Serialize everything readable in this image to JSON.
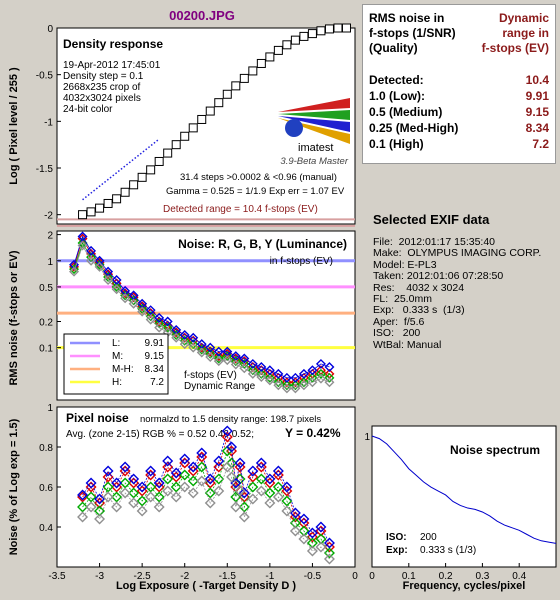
{
  "file_title": "00200.JPG",
  "colors": {
    "background": "#d4d0c8",
    "title": "#800080",
    "value_red": "#8b1a1a"
  },
  "rms_table": {
    "header_left": "RMS noise in\nf-stops (1/SNR)\n(Quality)",
    "header_right": "Dynamic\nrange in\nf-stops (EV)",
    "rows": [
      {
        "label": "Detected:",
        "value": "10.4"
      },
      {
        "label": "1.0   (Low):",
        "value": "9.91"
      },
      {
        "label": "0.5   (Medium)",
        "value": "9.15"
      },
      {
        "label": "0.25 (Med-High)",
        "value": "8.34"
      },
      {
        "label": "0.1   (High)",
        "value": "7.2"
      }
    ]
  },
  "exif": {
    "title": "Selected EXIF data",
    "lines": [
      "File:  2012:01:17 15:35:40",
      "Make:  OLYMPUS IMAGING CORP.",
      "Model: E-PL3",
      "Taken: 2012:01:06 07:28:50",
      "Res:    4032 x 3024",
      "FL:  25.0mm",
      "Exp:   0.333 s  (1/3)",
      "Aper:  f/5.6",
      "ISO:   200",
      "WtBal: Manual"
    ]
  },
  "chart_data": [
    {
      "type": "scatter",
      "title": "Density response",
      "info_lines": [
        "19-Apr-2012 17:45:01",
        "Density step = 0.1",
        "2668x235 crop of",
        "4032x3024 pixels",
        "24-bit color"
      ],
      "logo_text": "imatest",
      "version_text": "3.9-Beta  Master",
      "steps_text": "31.4 steps >0.0002 & <0.96 (manual)",
      "gamma_text": "Gamma = 0.525 = 1/1.9  Exp err = 1.07 EV",
      "detected_text": "Detected range = 10.4 f-stops (EV)",
      "ylabel": "Log ( Pixel level / 255 )",
      "xlim": [
        -3.5,
        0
      ],
      "ylim": [
        -2.1,
        0
      ],
      "yticks": [
        0,
        -0.5,
        -1,
        -1.5,
        -2
      ],
      "series": [
        {
          "marker": "square",
          "x": [
            -3.2,
            -3.1,
            -3.0,
            -2.9,
            -2.8,
            -2.7,
            -2.6,
            -2.5,
            -2.4,
            -2.3,
            -2.2,
            -2.1,
            -2.0,
            -1.9,
            -1.8,
            -1.7,
            -1.6,
            -1.5,
            -1.4,
            -1.3,
            -1.2,
            -1.1,
            -1.0,
            -0.9,
            -0.8,
            -0.7,
            -0.6,
            -0.5,
            -0.4,
            -0.3,
            -0.2,
            -0.1
          ],
          "y": [
            -2.0,
            -1.97,
            -1.93,
            -1.88,
            -1.83,
            -1.76,
            -1.68,
            -1.6,
            -1.52,
            -1.43,
            -1.34,
            -1.25,
            -1.16,
            -1.07,
            -0.98,
            -0.89,
            -0.8,
            -0.71,
            -0.62,
            -0.54,
            -0.46,
            -0.38,
            -0.31,
            -0.24,
            -0.18,
            -0.13,
            -0.09,
            -0.06,
            -0.03,
            -0.01,
            0.0,
            0.0
          ]
        },
        {
          "marker": "dotted-line",
          "x": [
            -3.2,
            -2.3
          ],
          "y": [
            -1.84,
            -1.19
          ]
        }
      ]
    },
    {
      "type": "scatter",
      "title": "Noise: R, G, B, Y (Luminance)",
      "subtitle": "in f-stops (EV)",
      "ylabel": "RMS noise (f-stops or EV)",
      "yscale": "log",
      "xlim": [
        -3.5,
        0
      ],
      "ylim": [
        0.025,
        2.2
      ],
      "yticks": [
        2,
        1,
        0.5,
        0.2,
        0.1
      ],
      "levels": [
        {
          "label": "L:",
          "value": "9.91",
          "y": 1.0,
          "color": "#9090ff"
        },
        {
          "label": "M:",
          "value": "9.15",
          "y": 0.5,
          "color": "#ff90ff"
        },
        {
          "label": "M-H:",
          "value": "8.34",
          "y": 0.25,
          "color": "#ffb080"
        },
        {
          "label": "H:",
          "value": "7.2",
          "y": 0.1,
          "color": "#ffff40"
        }
      ],
      "legend_note": "f-stops (EV)\nDynamic Range",
      "series": [
        {
          "name": "R",
          "color": "#dd0000",
          "x": [
            -3.3,
            -3.2,
            -3.1,
            -3.0,
            -2.9,
            -2.8,
            -2.7,
            -2.6,
            -2.5,
            -2.4,
            -2.3,
            -2.2,
            -2.1,
            -2.0,
            -1.9,
            -1.8,
            -1.7,
            -1.6,
            -1.5,
            -1.4,
            -1.3,
            -1.2,
            -1.1,
            -1.0,
            -0.9,
            -0.8,
            -0.7,
            -0.6,
            -0.5,
            -0.4,
            -0.3
          ],
          "y": [
            0.85,
            1.8,
            1.2,
            0.95,
            0.7,
            0.55,
            0.42,
            0.38,
            0.3,
            0.25,
            0.2,
            0.18,
            0.15,
            0.13,
            0.12,
            0.1,
            0.09,
            0.08,
            0.085,
            0.075,
            0.07,
            0.06,
            0.055,
            0.05,
            0.045,
            0.04,
            0.04,
            0.045,
            0.05,
            0.055,
            0.05
          ]
        },
        {
          "name": "G",
          "color": "#00aa00",
          "x": [
            -3.3,
            -3.2,
            -3.1,
            -3.0,
            -2.9,
            -2.8,
            -2.7,
            -2.6,
            -2.5,
            -2.4,
            -2.3,
            -2.2,
            -2.1,
            -2.0,
            -1.9,
            -1.8,
            -1.7,
            -1.6,
            -1.5,
            -1.4,
            -1.3,
            -1.2,
            -1.1,
            -1.0,
            -0.9,
            -0.8,
            -0.7,
            -0.6,
            -0.5,
            -0.4,
            -0.3
          ],
          "y": [
            0.8,
            1.6,
            1.1,
            0.9,
            0.65,
            0.5,
            0.4,
            0.35,
            0.28,
            0.23,
            0.19,
            0.17,
            0.14,
            0.12,
            0.11,
            0.095,
            0.085,
            0.075,
            0.08,
            0.07,
            0.065,
            0.055,
            0.05,
            0.045,
            0.04,
            0.037,
            0.037,
            0.04,
            0.045,
            0.05,
            0.045
          ]
        },
        {
          "name": "B",
          "color": "#0000dd",
          "x": [
            -3.3,
            -3.2,
            -3.1,
            -3.0,
            -2.9,
            -2.8,
            -2.7,
            -2.6,
            -2.5,
            -2.4,
            -2.3,
            -2.2,
            -2.1,
            -2.0,
            -1.9,
            -1.8,
            -1.7,
            -1.6,
            -1.5,
            -1.4,
            -1.3,
            -1.2,
            -1.1,
            -1.0,
            -0.9,
            -0.8,
            -0.7,
            -0.6,
            -0.5,
            -0.4,
            -0.3
          ],
          "y": [
            0.9,
            1.9,
            1.3,
            1.0,
            0.75,
            0.6,
            0.45,
            0.4,
            0.32,
            0.27,
            0.22,
            0.2,
            0.16,
            0.14,
            0.13,
            0.11,
            0.1,
            0.09,
            0.09,
            0.08,
            0.075,
            0.065,
            0.06,
            0.055,
            0.05,
            0.045,
            0.045,
            0.05,
            0.055,
            0.065,
            0.06
          ]
        },
        {
          "name": "Y",
          "color": "#909090",
          "x": [
            -3.3,
            -3.2,
            -3.1,
            -3.0,
            -2.9,
            -2.8,
            -2.7,
            -2.6,
            -2.5,
            -2.4,
            -2.3,
            -2.2,
            -2.1,
            -2.0,
            -1.9,
            -1.8,
            -1.7,
            -1.6,
            -1.5,
            -1.4,
            -1.3,
            -1.2,
            -1.1,
            -1.0,
            -0.9,
            -0.8,
            -0.7,
            -0.6,
            -0.5,
            -0.4,
            -0.3
          ],
          "y": [
            0.75,
            1.5,
            1.0,
            0.85,
            0.6,
            0.47,
            0.37,
            0.32,
            0.26,
            0.21,
            0.17,
            0.15,
            0.13,
            0.11,
            0.1,
            0.088,
            0.078,
            0.07,
            0.072,
            0.064,
            0.058,
            0.05,
            0.046,
            0.042,
            0.037,
            0.034,
            0.034,
            0.037,
            0.04,
            0.044,
            0.04
          ]
        }
      ]
    },
    {
      "type": "scatter",
      "title": "Pixel noise",
      "subtitle": "normalzd to 1.5 density range: 198.7 pixels",
      "avg_text": "Avg. (zone 2-15) RGB % = 0.52  0.46  0.52;",
      "y_text": "Y = 0.42%",
      "xlabel": "Log Exposure ( -Target Density D )",
      "ylabel": "Noise (% of Log exp = 1.5)",
      "xlim": [
        -3.5,
        0
      ],
      "ylim": [
        0.2,
        1.0
      ],
      "xticks": [
        -3.5,
        -3,
        -2.5,
        -2,
        -1.5,
        -1,
        -0.5,
        0
      ],
      "yticks": [
        1,
        0.8,
        0.6,
        0.4
      ],
      "series": [
        {
          "name": "R",
          "color": "#dd0000",
          "x": [
            -3.2,
            -3.1,
            -3.0,
            -2.9,
            -2.8,
            -2.7,
            -2.6,
            -2.5,
            -2.4,
            -2.3,
            -2.2,
            -2.1,
            -2.0,
            -1.9,
            -1.8,
            -1.7,
            -1.6,
            -1.5,
            -1.45,
            -1.4,
            -1.35,
            -1.3,
            -1.2,
            -1.1,
            -1.0,
            -0.9,
            -0.8,
            -0.7,
            -0.6,
            -0.5,
            -0.4,
            -0.3
          ],
          "y": [
            0.55,
            0.6,
            0.52,
            0.65,
            0.6,
            0.68,
            0.62,
            0.58,
            0.66,
            0.6,
            0.7,
            0.65,
            0.72,
            0.68,
            0.75,
            0.62,
            0.7,
            0.85,
            0.78,
            0.6,
            0.7,
            0.55,
            0.65,
            0.7,
            0.62,
            0.66,
            0.58,
            0.45,
            0.42,
            0.35,
            0.38,
            0.3
          ]
        },
        {
          "name": "G",
          "color": "#00aa00",
          "x": [
            -3.2,
            -3.1,
            -3.0,
            -2.9,
            -2.8,
            -2.7,
            -2.6,
            -2.5,
            -2.4,
            -2.3,
            -2.2,
            -2.1,
            -2.0,
            -1.9,
            -1.8,
            -1.7,
            -1.6,
            -1.5,
            -1.45,
            -1.4,
            -1.35,
            -1.3,
            -1.2,
            -1.1,
            -1.0,
            -0.9,
            -0.8,
            -0.7,
            -0.6,
            -0.5,
            -0.4,
            -0.3
          ],
          "y": [
            0.5,
            0.55,
            0.48,
            0.6,
            0.55,
            0.62,
            0.57,
            0.53,
            0.6,
            0.55,
            0.64,
            0.6,
            0.66,
            0.63,
            0.7,
            0.57,
            0.64,
            0.78,
            0.72,
            0.55,
            0.64,
            0.5,
            0.6,
            0.64,
            0.57,
            0.6,
            0.53,
            0.42,
            0.38,
            0.32,
            0.34,
            0.27
          ]
        },
        {
          "name": "B",
          "color": "#0000dd",
          "x": [
            -3.2,
            -3.1,
            -3.0,
            -2.9,
            -2.8,
            -2.7,
            -2.6,
            -2.5,
            -2.4,
            -2.3,
            -2.2,
            -2.1,
            -2.0,
            -1.9,
            -1.8,
            -1.7,
            -1.6,
            -1.5,
            -1.45,
            -1.4,
            -1.35,
            -1.3,
            -1.2,
            -1.1,
            -1.0,
            -0.9,
            -0.8,
            -0.7,
            -0.6,
            -0.5,
            -0.4,
            -0.3
          ],
          "y": [
            0.56,
            0.62,
            0.54,
            0.68,
            0.62,
            0.7,
            0.64,
            0.6,
            0.68,
            0.62,
            0.73,
            0.67,
            0.74,
            0.7,
            0.77,
            0.64,
            0.73,
            0.88,
            0.8,
            0.62,
            0.72,
            0.57,
            0.68,
            0.72,
            0.64,
            0.68,
            0.6,
            0.47,
            0.44,
            0.37,
            0.4,
            0.32
          ]
        },
        {
          "name": "Y",
          "color": "#909090",
          "x": [
            -3.2,
            -3.1,
            -3.0,
            -2.9,
            -2.8,
            -2.7,
            -2.6,
            -2.5,
            -2.4,
            -2.3,
            -2.2,
            -2.1,
            -2.0,
            -1.9,
            -1.8,
            -1.7,
            -1.6,
            -1.5,
            -1.45,
            -1.4,
            -1.35,
            -1.3,
            -1.2,
            -1.1,
            -1.0,
            -0.9,
            -0.8,
            -0.7,
            -0.6,
            -0.5,
            -0.4,
            -0.3
          ],
          "y": [
            0.45,
            0.5,
            0.44,
            0.55,
            0.5,
            0.57,
            0.52,
            0.48,
            0.55,
            0.5,
            0.58,
            0.55,
            0.6,
            0.57,
            0.63,
            0.52,
            0.58,
            0.7,
            0.65,
            0.5,
            0.58,
            0.45,
            0.54,
            0.58,
            0.52,
            0.55,
            0.48,
            0.38,
            0.34,
            0.28,
            0.3,
            0.24
          ]
        }
      ]
    },
    {
      "type": "line",
      "title": "Noise spectrum",
      "xlabel": "Frequency, cycles/pixel",
      "xlim": [
        0,
        0.5
      ],
      "ylim": [
        0,
        1
      ],
      "xticks": [
        0,
        0.1,
        0.2,
        0.3,
        0.4
      ],
      "yticks": [
        1
      ],
      "iso_label": "ISO:",
      "iso_value": "200",
      "exp_label": "Exp:",
      "exp_value": "0.333 s   (1/3)",
      "series": [
        {
          "name": "spectrum",
          "color": "#0000cc",
          "x": [
            0,
            0.02,
            0.04,
            0.06,
            0.08,
            0.1,
            0.12,
            0.14,
            0.16,
            0.18,
            0.2,
            0.22,
            0.24,
            0.26,
            0.28,
            0.3,
            0.32,
            0.34,
            0.36,
            0.38,
            0.4,
            0.42,
            0.44,
            0.46,
            0.48,
            0.5
          ],
          "y": [
            1.0,
            0.98,
            0.94,
            0.88,
            0.82,
            0.75,
            0.7,
            0.65,
            0.61,
            0.58,
            0.55,
            0.5,
            0.47,
            0.45,
            0.44,
            0.42,
            0.39,
            0.35,
            0.32,
            0.3,
            0.28,
            0.25,
            0.22,
            0.2,
            0.19,
            0.18
          ]
        }
      ]
    }
  ]
}
